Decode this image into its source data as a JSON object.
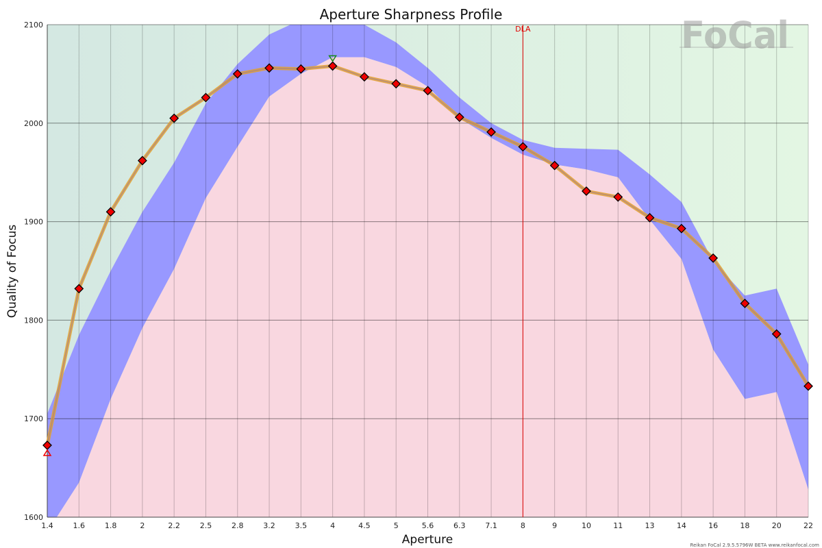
{
  "chart_data": {
    "type": "line",
    "title": "Aperture Sharpness Profile",
    "xlabel": "Aperture",
    "ylabel": "Quality of Focus",
    "ylim": [
      1600,
      2100
    ],
    "y_ticks": [
      1600,
      1700,
      1800,
      1900,
      2000,
      2100
    ],
    "grid": true,
    "categories": [
      "1.4",
      "1.6",
      "1.8",
      "2",
      "2.2",
      "2.5",
      "2.8",
      "3.2",
      "3.5",
      "4",
      "4.5",
      "5",
      "5.6",
      "6.3",
      "7.1",
      "8",
      "9",
      "10",
      "11",
      "13",
      "14",
      "16",
      "18",
      "20",
      "22"
    ],
    "series": [
      {
        "values": [
          1673,
          1832,
          1910,
          1962,
          2005,
          2026,
          2050,
          2056,
          2055,
          2058,
          2047,
          2040,
          2033,
          2006,
          1991,
          1976,
          1957,
          1931,
          1925,
          1904,
          1893,
          1863,
          1817,
          1786,
          1733
        ]
      }
    ],
    "band_upper": [
      1705,
      1785,
      1850,
      1910,
      1960,
      2020,
      2060,
      2090,
      2105,
      2102,
      2100,
      2082,
      2056,
      2026,
      2000,
      1983,
      1975,
      1974,
      1973,
      1948,
      1920,
      1860,
      1825,
      1832,
      1755
    ],
    "band_lower": [
      1585,
      1635,
      1720,
      1792,
      1852,
      1924,
      1976,
      2027,
      2050,
      2067,
      2067,
      2057,
      2037,
      2005,
      1985,
      1968,
      1958,
      1953,
      1945,
      1902,
      1862,
      1770,
      1720,
      1727,
      1628
    ],
    "markers": {
      "max_index": 9,
      "min_index": 0
    },
    "annotations": [
      {
        "text": "DLA",
        "x": "8",
        "color": "#e00000"
      }
    ],
    "colors": {
      "series": "#e0a030",
      "series_line_dark": "#9a7a9a",
      "marker_fill": "#ee0000",
      "band": "#9898ff",
      "under_curve": "#f9d7e0",
      "bg_left": "#d4e8e2",
      "bg_right": "#e3f6e3",
      "max_marker": "#1a8a1a",
      "min_marker": "#ee0000"
    }
  },
  "logo": {
    "text": "FoCal"
  },
  "footer": "Reikan FoCal 2.9.5.5796W BETA www.reikanfocal.com"
}
